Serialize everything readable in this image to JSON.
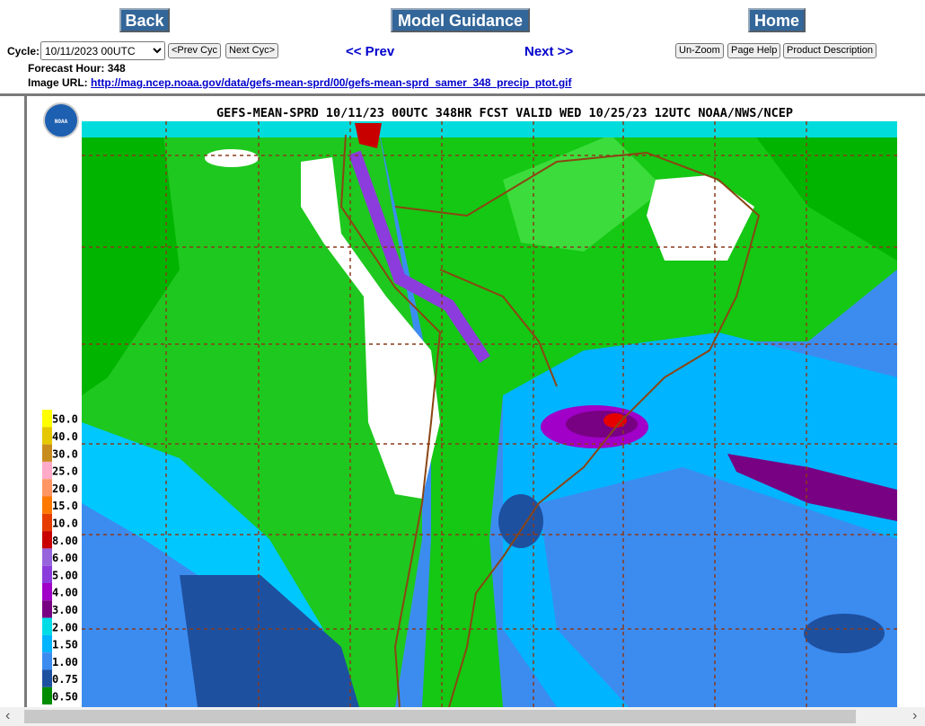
{
  "nav": {
    "back": "Back",
    "model_guidance": "Model Guidance",
    "home": "Home"
  },
  "controls": {
    "cycle_label": "Cycle:",
    "cycle_value": "10/11/2023 00UTC",
    "prev_cycle": "<Prev Cyc",
    "next_cycle": "Next Cyc>",
    "prev": "<< Prev",
    "next": "Next >>",
    "unzoom": "Un-Zoom",
    "page_help": "Page Help",
    "product_description": "Product Description"
  },
  "info": {
    "forecast_hour_label": "Forecast Hour:",
    "forecast_hour": "348",
    "image_url_label": "Image URL:",
    "image_url": "http://mag.ncep.noaa.gov/data/gefs-mean-sprd/00/gefs-mean-sprd_samer_348_precip_ptot.gif"
  },
  "map": {
    "title": "GEFS-MEAN-SPRD 10/11/23 00UTC 348HR FCST VALID WED 10/25/23 12UTC NOAA/NWS/NCEP",
    "logo": "NOAA",
    "legend": [
      {
        "label": "50.0",
        "color": "#ffff00"
      },
      {
        "label": "40.0",
        "color": "#e6c800"
      },
      {
        "label": "30.0",
        "color": "#c88c1e"
      },
      {
        "label": "25.0",
        "color": "#ffaac8"
      },
      {
        "label": "20.0",
        "color": "#ff9664"
      },
      {
        "label": "15.0",
        "color": "#ff7800"
      },
      {
        "label": "10.0",
        "color": "#e63c00"
      },
      {
        "label": "8.00",
        "color": "#c80000"
      },
      {
        "label": "6.00",
        "color": "#9664dc"
      },
      {
        "label": "5.00",
        "color": "#8c3cdc"
      },
      {
        "label": "4.00",
        "color": "#a000c8"
      },
      {
        "label": "3.00",
        "color": "#780082"
      },
      {
        "label": "2.00",
        "color": "#00dce6"
      },
      {
        "label": "1.50",
        "color": "#00b4ff"
      },
      {
        "label": "1.00",
        "color": "#3c8cf0"
      },
      {
        "label": "0.75",
        "color": "#1e50a0"
      },
      {
        "label": "0.50",
        "color": "#008c00"
      }
    ]
  }
}
